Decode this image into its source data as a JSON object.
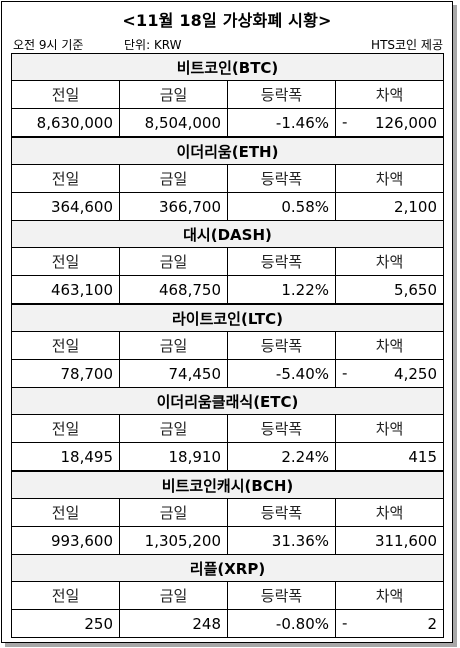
{
  "title": "<11월 18일 가상화폐 시황>",
  "meta": {
    "time": "오전 9시 기준",
    "unit": "단위: KRW",
    "source": "HTS코인 제공"
  },
  "columns": [
    "전일",
    "금일",
    "등락폭",
    "차액"
  ],
  "coins": [
    {
      "name": "비트코인(BTC)",
      "prev": "8,630,000",
      "today": "8,504,000",
      "change": "-1.46%",
      "sign": "-",
      "diff": "126,000"
    },
    {
      "name": "이더리움(ETH)",
      "prev": "364,600",
      "today": "366,700",
      "change": "0.58%",
      "sign": "",
      "diff": "2,100"
    },
    {
      "name": "대시(DASH)",
      "prev": "463,100",
      "today": "468,750",
      "change": "1.22%",
      "sign": "",
      "diff": "5,650"
    },
    {
      "name": "라이트코인(LTC)",
      "prev": "78,700",
      "today": "74,450",
      "change": "-5.40%",
      "sign": "-",
      "diff": "4,250"
    },
    {
      "name": "이더리움클래식(ETC)",
      "prev": "18,495",
      "today": "18,910",
      "change": "2.24%",
      "sign": "",
      "diff": "415"
    },
    {
      "name": "비트코인캐시(BCH)",
      "prev": "993,600",
      "today": "1,305,200",
      "change": "31.36%",
      "sign": "",
      "diff": "311,600"
    },
    {
      "name": "리플(XRP)",
      "prev": "250",
      "today": "248",
      "change": "-0.80%",
      "sign": "-",
      "diff": "2"
    }
  ]
}
